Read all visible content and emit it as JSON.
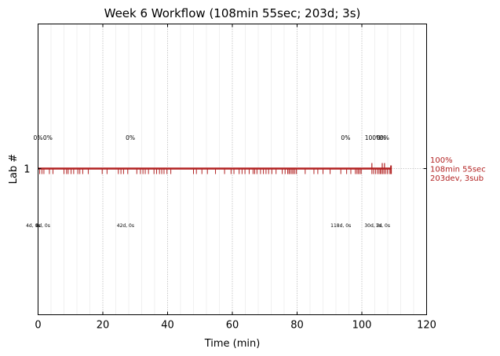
{
  "chart_data": {
    "type": "timeline",
    "title": "Week 6 Workflow (108min 55sec; 203d; 3s)",
    "xlabel": "Time (min)",
    "ylabel": "Lab #",
    "xlim": [
      0,
      120
    ],
    "x_ticks": [
      0,
      20,
      40,
      60,
      80,
      100,
      120
    ],
    "y_categories": [
      "1"
    ],
    "major_grid_every": 20,
    "minor_grid_every": 4,
    "series": [
      {
        "lab": "1",
        "color": "#b22222",
        "line_start": 0,
        "line_end": 109,
        "summary": [
          "100%",
          "108min 55sec",
          "203dev, 3sub"
        ],
        "dev_ticks": [
          0.5,
          1.2,
          1.8,
          3.5,
          4.6,
          8.0,
          8.8,
          9.3,
          10.2,
          11.0,
          12.3,
          12.9,
          13.8,
          15.5,
          19.8,
          21.3,
          24.8,
          25.6,
          26.4,
          27.7,
          30.5,
          31.6,
          32.4,
          33.1,
          34.1,
          35.8,
          36.6,
          37.5,
          38.2,
          38.9,
          39.8,
          41.0,
          48.0,
          48.9,
          50.6,
          52.3,
          54.8,
          57.6,
          59.6,
          60.5,
          62.1,
          63.0,
          63.9,
          65.2,
          66.4,
          66.9,
          67.6,
          68.7,
          69.6,
          70.4,
          71.2,
          72.2,
          73.5,
          75.4,
          76.3,
          77.1,
          77.5,
          77.9,
          78.4,
          78.8,
          79.3,
          79.8,
          82.5,
          85.2,
          86.4,
          88.0,
          90.2,
          93.5,
          95.3,
          96.6,
          98.0,
          98.5,
          98.9,
          99.4,
          99.8,
          103.1,
          103.6,
          104.2,
          104.8,
          105.3,
          105.7,
          106.1,
          106.5,
          106.9,
          107.4,
          107.9,
          108.5
        ],
        "sub_ticks": [
          103.1,
          106.3,
          107.0
        ],
        "top_labels": [
          {
            "x": 0,
            "text": "0%"
          },
          {
            "x": 3.0,
            "text": "0%"
          },
          {
            "x": 28.5,
            "text": "0%"
          },
          {
            "x": 95.0,
            "text": "0%"
          },
          {
            "x": 103.5,
            "text": "100%"
          },
          {
            "x": 106.0,
            "text": "0%"
          },
          {
            "x": 107.0,
            "text": "0%"
          }
        ],
        "bottom_labels": [
          {
            "x": -1.5,
            "text": "4d, 0s"
          },
          {
            "x": 1.5,
            "text": "8d, 0s"
          },
          {
            "x": 27.0,
            "text": "42d, 0s"
          },
          {
            "x": 93.5,
            "text": "118d, 0s"
          },
          {
            "x": 103.5,
            "text": "30d, 3s"
          },
          {
            "x": 106.5,
            "text": "1d, 0s"
          }
        ]
      }
    ]
  }
}
